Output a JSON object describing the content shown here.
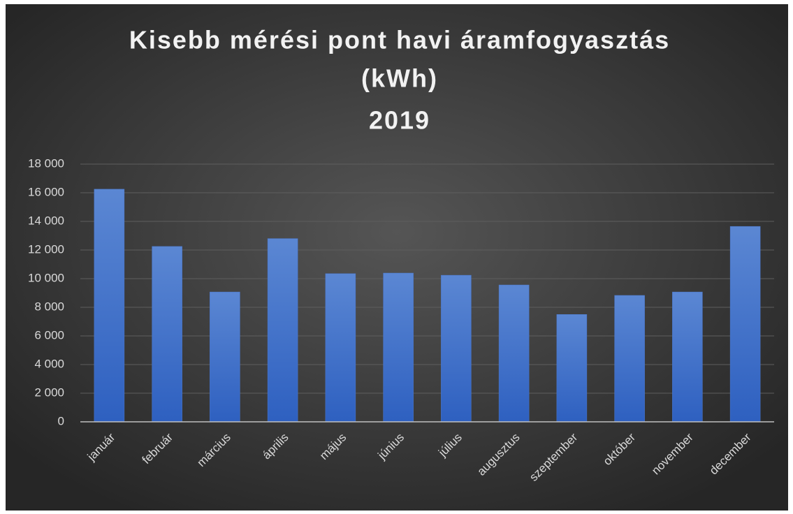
{
  "chart_data": {
    "type": "bar",
    "title_lines": [
      "Kisebb mérési pont havi áramfogyasztás",
      "(kWh)",
      "2019"
    ],
    "categories": [
      "január",
      "február",
      "március",
      "április",
      "május",
      "június",
      "július",
      "augusztus",
      "szeptember",
      "október",
      "november",
      "december"
    ],
    "values": [
      16250,
      12250,
      9070,
      12800,
      10350,
      10390,
      10240,
      9560,
      7500,
      8830,
      9070,
      13650
    ],
    "color": "#4a78cf",
    "ylim": [
      0,
      18000
    ],
    "yticks": [
      0,
      {
        "value": 2000,
        "label": "2 000"
      },
      {
        "value": 4000,
        "label": "4 000"
      },
      {
        "value": 6000,
        "label": "6 000"
      },
      {
        "value": 8000,
        "label": "8 000"
      },
      {
        "value": 10000,
        "label": "10 000"
      },
      {
        "value": 12000,
        "label": "12 000"
      },
      {
        "value": 14000,
        "label": "14 000"
      },
      {
        "value": 16000,
        "label": "16 000"
      },
      {
        "value": 18000,
        "label": "18 000"
      }
    ],
    "grid": true
  }
}
